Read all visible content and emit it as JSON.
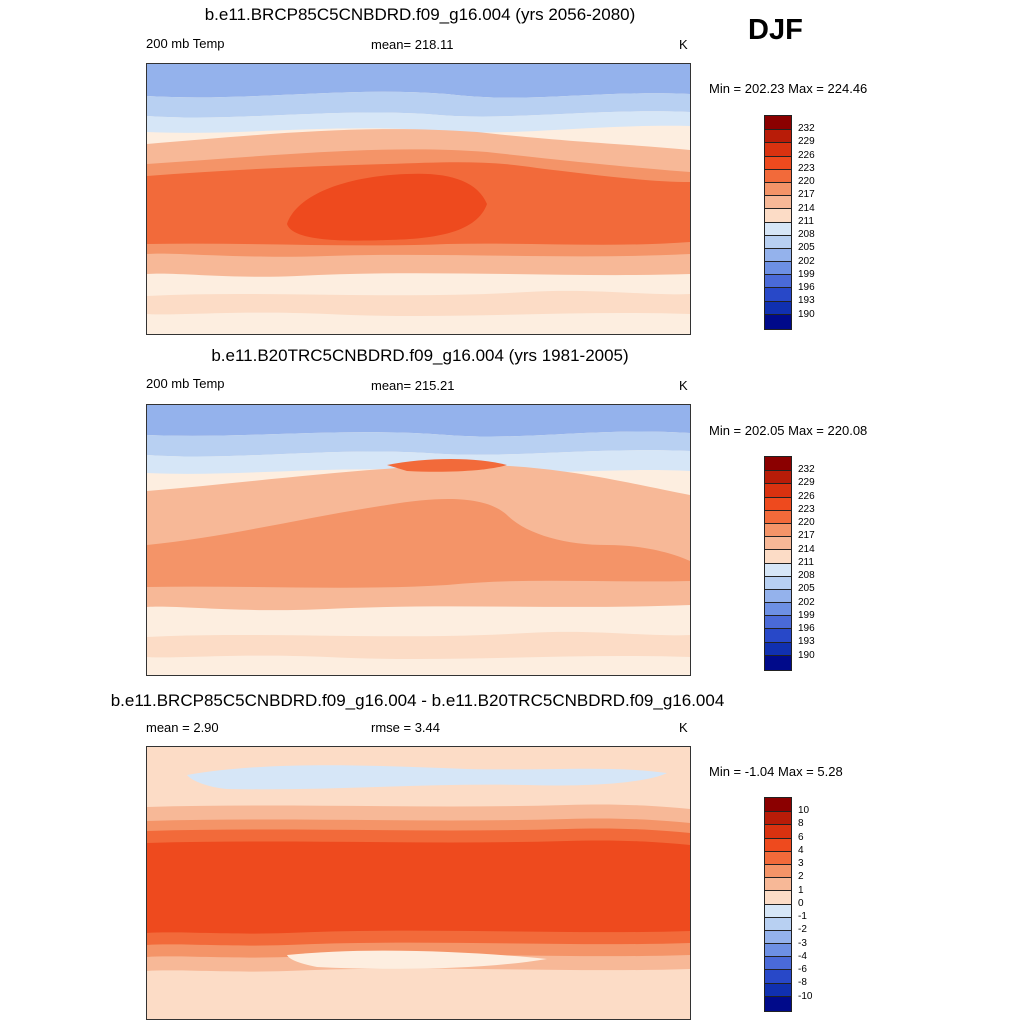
{
  "season": "DJF",
  "panels": [
    {
      "title": "b.e11.BRCP85C5CNBDRD.f09_g16.004 (yrs 2056-2080)",
      "left_label": "200 mb Temp",
      "center_label": "mean= 218.11",
      "units": "K",
      "minmax": "Min = 202.23 Max = 224.46",
      "levels": [
        "232",
        "229",
        "226",
        "223",
        "220",
        "217",
        "214",
        "211",
        "208",
        "205",
        "202",
        "199",
        "196",
        "193",
        "190"
      ],
      "colors": [
        "#8B0000",
        "#B81C08",
        "#D93210",
        "#EE4A1E",
        "#F26A3A",
        "#F49468",
        "#F7B897",
        "#FCDCC6",
        "#FDEEE0",
        "#D6E6F7",
        "#B8D0F2",
        "#94B2EC",
        "#6D90E4",
        "#4A6AD8",
        "#2848C8",
        "#1030B0",
        "#000A8A"
      ]
    },
    {
      "title": "b.e11.B20TRC5CNBDRD.f09_g16.004 (yrs 1981-2005)",
      "left_label": "200 mb Temp",
      "center_label": "mean= 215.21",
      "units": "K",
      "minmax": "Min = 202.05 Max = 220.08",
      "levels": [
        "232",
        "229",
        "226",
        "223",
        "220",
        "217",
        "214",
        "211",
        "208",
        "205",
        "202",
        "199",
        "196",
        "193",
        "190"
      ],
      "colors": [
        "#8B0000",
        "#B81C08",
        "#D93210",
        "#EE4A1E",
        "#F26A3A",
        "#F49468",
        "#F7B897",
        "#FCDCC6",
        "#FDEEE0",
        "#D6E6F7",
        "#B8D0F2",
        "#94B2EC",
        "#6D90E4",
        "#4A6AD8",
        "#2848C8",
        "#1030B0",
        "#000A8A"
      ]
    },
    {
      "title": "b.e11.BRCP85C5CNBDRD.f09_g16.004 - b.e11.B20TRC5CNBDRD.f09_g16.004",
      "left_label": "mean =   2.90",
      "center_label": "rmse =   3.44",
      "units": "K",
      "minmax": "Min =  -1.04 Max =   5.28",
      "levels": [
        "10",
        "8",
        "6",
        "4",
        "3",
        "2",
        "1",
        "0",
        "-1",
        "-2",
        "-3",
        "-4",
        "-6",
        "-8",
        "-10"
      ],
      "colors": [
        "#8B0000",
        "#B81C08",
        "#D93210",
        "#EE4A1E",
        "#F26A3A",
        "#F49468",
        "#F7B897",
        "#FCDCC6",
        "#FDEEE0",
        "#D6E6F7",
        "#B8D0F2",
        "#94B2EC",
        "#6D90E4",
        "#4A6AD8",
        "#2848C8",
        "#1030B0",
        "#000A8A"
      ]
    }
  ]
}
